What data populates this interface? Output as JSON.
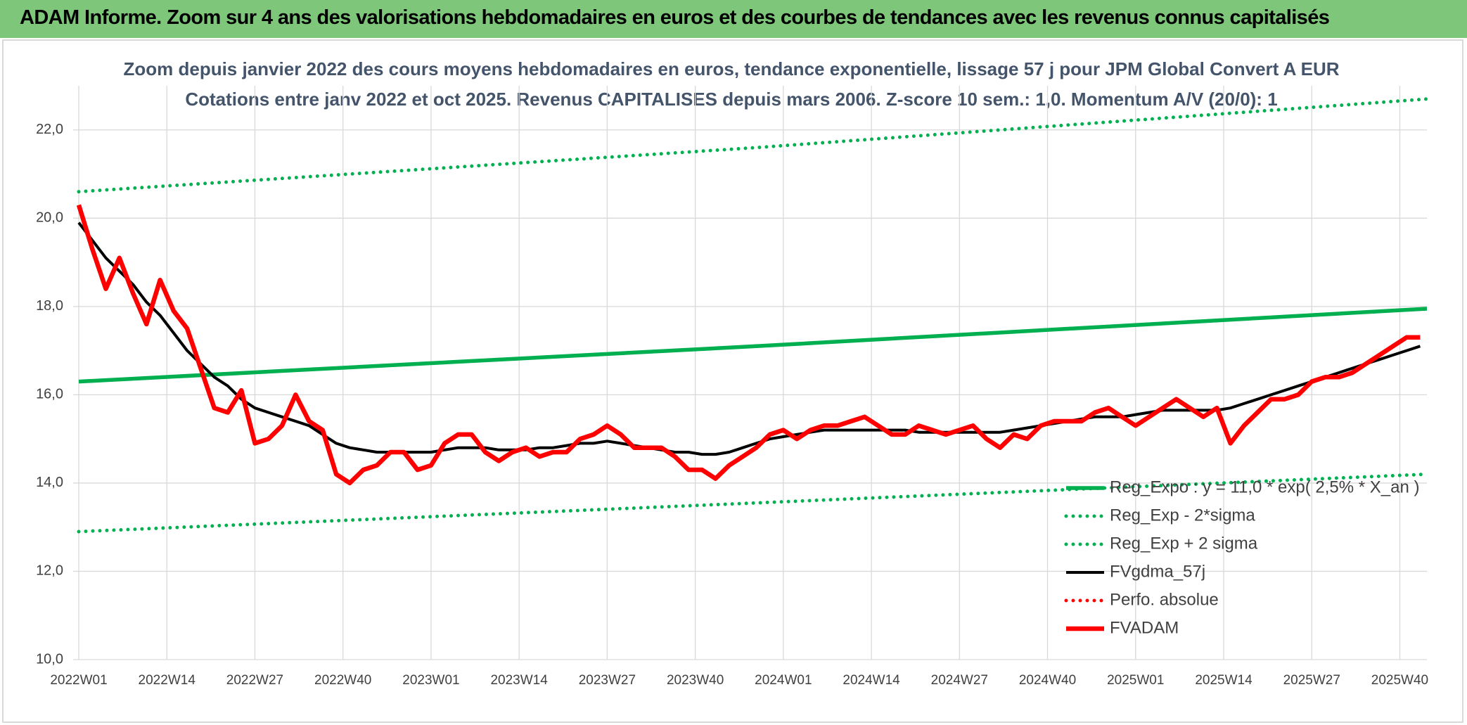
{
  "header": {
    "title": "ADAM Informe. Zoom sur 4 ans des valorisations hebdomadaires en euros et des courbes de tendances avec les revenus connus capitalisés"
  },
  "chart_data": {
    "type": "line",
    "title": "Zoom depuis janvier 2022 des cours moyens hebdomadaires en euros, tendance exponentielle, lissage 57 j pour JPM Global Convert A EUR",
    "subtitle": "Cotations entre janv 2022 et oct 2025. Revenus CAPITALISES depuis mars 2006. Z-score 10 sem.: 1,0. Momentum A/V (20/0): 1",
    "xlim": [
      0,
      199
    ],
    "xticks": [
      {
        "value": 0,
        "label": "2022W01"
      },
      {
        "value": 13,
        "label": "2022W14"
      },
      {
        "value": 26,
        "label": "2022W27"
      },
      {
        "value": 39,
        "label": "2022W40"
      },
      {
        "value": 52,
        "label": "2023W01"
      },
      {
        "value": 65,
        "label": "2023W14"
      },
      {
        "value": 78,
        "label": "2023W27"
      },
      {
        "value": 91,
        "label": "2023W40"
      },
      {
        "value": 104,
        "label": "2024W01"
      },
      {
        "value": 117,
        "label": "2024W14"
      },
      {
        "value": 130,
        "label": "2024W27"
      },
      {
        "value": 143,
        "label": "2024W40"
      },
      {
        "value": 156,
        "label": "2025W01"
      },
      {
        "value": 169,
        "label": "2025W14"
      },
      {
        "value": 182,
        "label": "2025W27"
      },
      {
        "value": 195,
        "label": "2025W40"
      }
    ],
    "ylim": [
      10,
      23
    ],
    "yticks": [
      {
        "value": 10,
        "label": "10,0"
      },
      {
        "value": 12,
        "label": "12,0"
      },
      {
        "value": 14,
        "label": "14,0"
      },
      {
        "value": 16,
        "label": "16,0"
      },
      {
        "value": 18,
        "label": "18,0"
      },
      {
        "value": 20,
        "label": "20,0"
      },
      {
        "value": 22,
        "label": "22,0"
      }
    ],
    "grid": true,
    "x": [
      0,
      2,
      4,
      6,
      8,
      10,
      12,
      14,
      16,
      18,
      20,
      22,
      24,
      26,
      28,
      30,
      32,
      34,
      36,
      38,
      40,
      42,
      44,
      46,
      48,
      50,
      52,
      54,
      56,
      58,
      60,
      62,
      64,
      66,
      68,
      70,
      72,
      74,
      76,
      78,
      80,
      82,
      84,
      86,
      88,
      90,
      92,
      94,
      96,
      98,
      100,
      102,
      104,
      106,
      108,
      110,
      112,
      114,
      116,
      118,
      120,
      122,
      124,
      126,
      128,
      130,
      132,
      134,
      136,
      138,
      140,
      142,
      144,
      146,
      148,
      150,
      152,
      154,
      156,
      158,
      160,
      162,
      164,
      166,
      168,
      170,
      172,
      174,
      176,
      178,
      180,
      182,
      184,
      186,
      188,
      190,
      192,
      194,
      196,
      198
    ],
    "series": [
      {
        "name": "Reg_Expo : y = 11,0 * exp( 2,5% *  X_an )",
        "color": "#00b050",
        "style": "solid",
        "x": [
          0,
          100,
          199
        ],
        "values": [
          16.3,
          17.1,
          17.95
        ]
      },
      {
        "name": "Reg_Exp - 2*sigma",
        "color": "#00b050",
        "style": "dotted",
        "x": [
          0,
          100,
          199
        ],
        "values": [
          12.9,
          13.55,
          14.2
        ]
      },
      {
        "name": "Reg_Exp + 2 sigma",
        "color": "#00b050",
        "style": "dotted",
        "x": [
          0,
          100,
          199
        ],
        "values": [
          20.6,
          21.6,
          22.7
        ]
      },
      {
        "name": "FVgdma_57j",
        "color": "#000000",
        "style": "solid",
        "values": [
          19.9,
          19.5,
          19.1,
          18.8,
          18.5,
          18.1,
          17.8,
          17.4,
          17.0,
          16.7,
          16.4,
          16.2,
          15.9,
          15.7,
          15.6,
          15.5,
          15.4,
          15.3,
          15.1,
          14.9,
          14.8,
          14.75,
          14.7,
          14.7,
          14.7,
          14.7,
          14.7,
          14.75,
          14.8,
          14.8,
          14.8,
          14.75,
          14.75,
          14.75,
          14.8,
          14.8,
          14.85,
          14.9,
          14.9,
          14.95,
          14.9,
          14.85,
          14.8,
          14.75,
          14.7,
          14.7,
          14.65,
          14.65,
          14.7,
          14.8,
          14.9,
          15.0,
          15.05,
          15.1,
          15.15,
          15.2,
          15.2,
          15.2,
          15.2,
          15.2,
          15.2,
          15.2,
          15.15,
          15.15,
          15.15,
          15.15,
          15.15,
          15.15,
          15.15,
          15.2,
          15.25,
          15.3,
          15.35,
          15.4,
          15.45,
          15.5,
          15.5,
          15.5,
          15.55,
          15.6,
          15.65,
          15.65,
          15.65,
          15.65,
          15.65,
          15.7,
          15.8,
          15.9,
          16.0,
          16.1,
          16.2,
          16.3,
          16.4,
          16.5,
          16.6,
          16.7,
          16.8,
          16.9,
          17.0,
          17.1
        ]
      },
      {
        "name": "Perfo. absolue",
        "color": "#ff0000",
        "style": "dotted",
        "x": [],
        "values": []
      },
      {
        "name": "FVADAM",
        "color": "#ff0000",
        "style": "bold",
        "values": [
          20.3,
          19.3,
          18.4,
          19.1,
          18.3,
          17.6,
          18.6,
          17.9,
          17.5,
          16.6,
          15.7,
          15.6,
          16.1,
          14.9,
          15.0,
          15.3,
          16.0,
          15.4,
          15.2,
          14.2,
          14.0,
          14.3,
          14.4,
          14.7,
          14.7,
          14.3,
          14.4,
          14.9,
          15.1,
          15.1,
          14.7,
          14.5,
          14.7,
          14.8,
          14.6,
          14.7,
          14.7,
          15.0,
          15.1,
          15.3,
          15.1,
          14.8,
          14.8,
          14.8,
          14.6,
          14.3,
          14.3,
          14.1,
          14.4,
          14.6,
          14.8,
          15.1,
          15.2,
          15.0,
          15.2,
          15.3,
          15.3,
          15.4,
          15.5,
          15.3,
          15.1,
          15.1,
          15.3,
          15.2,
          15.1,
          15.2,
          15.3,
          15.0,
          14.8,
          15.1,
          15.0,
          15.3,
          15.4,
          15.4,
          15.4,
          15.6,
          15.7,
          15.5,
          15.3,
          15.5,
          15.7,
          15.9,
          15.7,
          15.5,
          15.7,
          14.9,
          15.3,
          15.6,
          15.9,
          15.9,
          16.0,
          16.3,
          16.4,
          16.4,
          16.5,
          16.7,
          16.9,
          17.1,
          17.3,
          17.3
        ]
      }
    ]
  }
}
